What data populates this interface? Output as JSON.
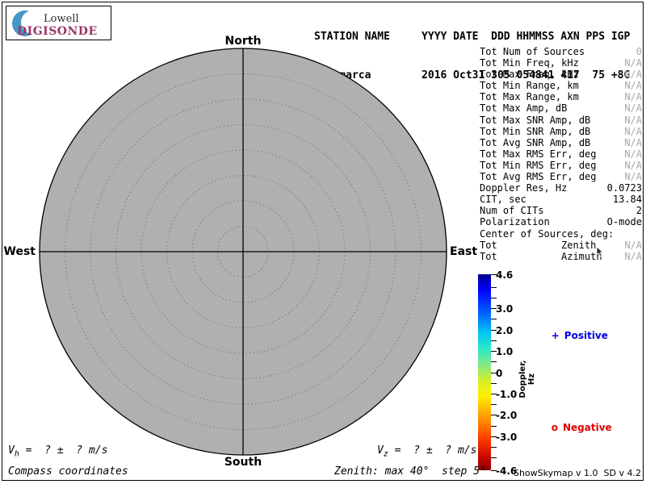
{
  "logo": {
    "line1": "Lowell",
    "line2": "DIGISONDE",
    "digisonde_color": "#9c3767",
    "crescent_color": "#4796c3"
  },
  "header": {
    "columns_row": "STATION NAME     YYYY DATE  DDD HHMMSS AXN PPS IGP",
    "values_row": "Jicamarca        2016 Oct31 305 054841 417  75 +8G"
  },
  "compass": {
    "north": "North",
    "south": "South",
    "west": "West",
    "east": "East"
  },
  "skymap": {
    "zenith_max_deg": 40,
    "zenith_step_deg": 5,
    "fill": "#b0b0b0",
    "ring_color": "#6e6e6e"
  },
  "stats": {
    "rows": [
      {
        "label": "Tot Num of Sources",
        "mid": "",
        "value": "0",
        "muted": true
      },
      {
        "label": "Tot Min Freq, kHz",
        "mid": "",
        "value": "N/A",
        "muted": true
      },
      {
        "label": "Tot Max Freq, kHz",
        "mid": "",
        "value": "N/A",
        "muted": true
      },
      {
        "label": "Tot Min Range, km",
        "mid": "",
        "value": "N/A",
        "muted": true
      },
      {
        "label": "Tot Max Range, km",
        "mid": "",
        "value": "N/A",
        "muted": true
      },
      {
        "label": "Tot Max Amp, dB",
        "mid": "",
        "value": "N/A",
        "muted": true
      },
      {
        "label": "Tot Max SNR Amp, dB",
        "mid": "",
        "value": "N/A",
        "muted": true
      },
      {
        "label": "Tot Min SNR Amp, dB",
        "mid": "",
        "value": "N/A",
        "muted": true
      },
      {
        "label": "Tot Avg SNR Amp, dB",
        "mid": "",
        "value": "N/A",
        "muted": true
      },
      {
        "label": "Tot Max RMS Err, deg",
        "mid": "",
        "value": "N/A",
        "muted": true
      },
      {
        "label": "Tot Min RMS Err, deg",
        "mid": "",
        "value": "N/A",
        "muted": true
      },
      {
        "label": "Tot Avg RMS Err, deg",
        "mid": "",
        "value": "N/A",
        "muted": true
      },
      {
        "label": "Doppler Res, Hz",
        "mid": "",
        "value": "0.0723",
        "muted": false
      },
      {
        "label": "CIT, sec",
        "mid": "",
        "value": "13.84",
        "muted": false
      },
      {
        "label": "Num of CITs",
        "mid": "",
        "value": "2",
        "muted": false
      },
      {
        "label": "Polarization",
        "mid": "",
        "value": "O-mode",
        "muted": false
      },
      {
        "label": "Center of Sources, deg:",
        "mid": "",
        "value": "",
        "muted": false
      },
      {
        "label": "Tot",
        "mid": "Zenith",
        "value": "N/A",
        "muted": true
      },
      {
        "label": "Tot",
        "mid": "Azimuth",
        "value": "N/A",
        "muted": true
      }
    ]
  },
  "colorbar": {
    "title": "Doppler, Hz",
    "max": 4.6,
    "min": -4.6,
    "labeled_ticks": [
      {
        "v": 4.6,
        "label": "4.6"
      },
      {
        "v": 3.0,
        "label": "3.0"
      },
      {
        "v": 2.0,
        "label": "2.0"
      },
      {
        "v": 1.0,
        "label": "1.0"
      },
      {
        "v": 0,
        "label": "0"
      },
      {
        "v": -1.0,
        "label": "-1.0"
      },
      {
        "v": -2.0,
        "label": "-2.0"
      },
      {
        "v": -3.0,
        "label": "-3.0"
      },
      {
        "v": -4.6,
        "label": "-4.6"
      }
    ],
    "minor_ticks": [
      4.0,
      3.5,
      2.5,
      1.5,
      0.5,
      -0.5,
      -1.5,
      -2.5,
      -3.5,
      -4.0
    ],
    "gradient": [
      "#00008f 0%",
      "#0000ff 8%",
      "#0063ff 20%",
      "#00c8f0 30%",
      "#2ae8c8 38%",
      "#8ce87c 47%",
      "#d8f024 55%",
      "#fff000 62%",
      "#ffa000 72%",
      "#ff3c00 84%",
      "#cc0700 93%",
      "#8f0000 100%"
    ]
  },
  "legend": {
    "positive": {
      "marker": "+",
      "label": "Positive",
      "color": "#0000e0"
    },
    "negative": {
      "marker": "o",
      "label": "Negative",
      "color": "#e00000"
    }
  },
  "footer": {
    "vh": {
      "prefix": "V",
      "sub": "h",
      "rest": " =  ? ±  ? m/s"
    },
    "vz": {
      "prefix": "V",
      "sub": "z",
      "rest": " =  ? ±  ? m/s"
    },
    "coords_note": "Compass coordinates",
    "zenith_note": "Zenith: max 40°  step 5°",
    "version": "ShowSkymap v 1.0  SD v 4.2"
  }
}
